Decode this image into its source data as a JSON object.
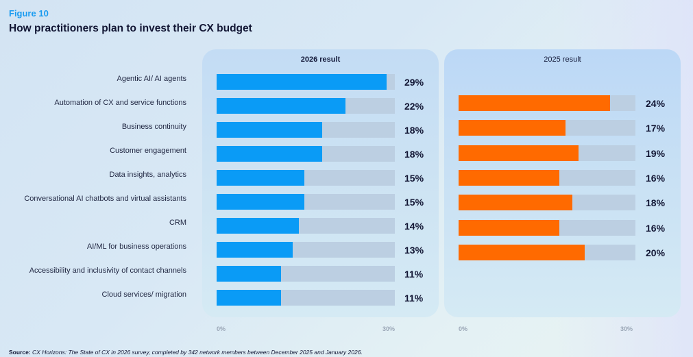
{
  "figure_label": "Figure 10",
  "title": "How practitioners plan to invest their CX budget",
  "source_label": "Source:",
  "source_text": "CX Horizons: The State of CX in 2026 survey, completed by 342 network members between December 2025 and January 2026.",
  "colors": {
    "series_2026": "#0a9bf6",
    "series_2025": "#ff6a00",
    "track": "#bccfe2"
  },
  "chart_data": {
    "type": "bar",
    "orientation": "horizontal",
    "title": "How practitioners plan to invest their CX budget",
    "categories": [
      "Agentic AI/ AI agents",
      "Automation of CX and service functions",
      "Business continuity",
      "Customer engagement",
      "Data insights, analytics",
      "Conversational AI chatbots and virtual assistants",
      "CRM",
      "AI/ML for business operations",
      "Accessibility and inclusivity of contact channels",
      "Cloud services/ migration"
    ],
    "series": [
      {
        "name": "2026 result",
        "values": [
          29,
          22,
          18,
          18,
          15,
          15,
          14,
          13,
          11,
          11
        ],
        "labels": [
          "29%",
          "22%",
          "18%",
          "18%",
          "15%",
          "15%",
          "14%",
          "13%",
          "11%",
          "11%"
        ]
      },
      {
        "name": "2025 result",
        "values": [
          null,
          24,
          17,
          19,
          16,
          18,
          16,
          20,
          null,
          null
        ],
        "labels": [
          "",
          "24%",
          "17%",
          "19%",
          "16%",
          "18%",
          "16%",
          "20%",
          "",
          ""
        ]
      }
    ],
    "xlim": [
      0,
      30
    ],
    "xticks": [
      "0%",
      "30%"
    ],
    "unit": "%"
  }
}
